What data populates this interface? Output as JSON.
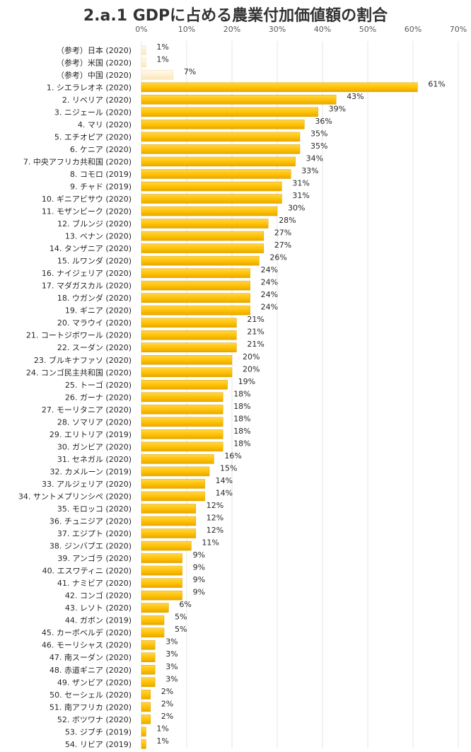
{
  "chart_data": {
    "type": "bar",
    "orientation": "horizontal",
    "title": "2.a.1 GDPに占める農業付加価値額の割合",
    "xlabel": "",
    "ylabel": "",
    "xlim": [
      0,
      70
    ],
    "x_ticks": [
      "0%",
      "10%",
      "20%",
      "30%",
      "40%",
      "50%",
      "60%",
      "70%"
    ],
    "grid": true,
    "value_suffix": "%",
    "colors": {
      "main": "#ffc000",
      "reference": "#fff2cc"
    },
    "categories": [
      "（参考）日本 (2020)",
      "（参考）米国 (2020)",
      "（参考）中国 (2020)",
      "1. シエラレオネ (2020)",
      "2. リベリア (2020)",
      "3. ニジェール (2020)",
      "4. マリ (2020)",
      "5. エチオピア (2020)",
      "6. ケニア (2020)",
      "7. 中央アフリカ共和国 (2020)",
      "8. コモロ (2019)",
      "9. チャド (2019)",
      "10. ギニアビサウ (2020)",
      "11. モザンビーク (2020)",
      "12. ブルンジ (2020)",
      "13. ベナン (2020)",
      "14. タンザニア (2020)",
      "15. ルワンダ (2020)",
      "16. ナイジェリア (2020)",
      "17. マダガスカル (2020)",
      "18. ウガンダ (2020)",
      "19. ギニア (2020)",
      "20. マラウイ (2020)",
      "21. コートジボワール (2020)",
      "22. スーダン (2020)",
      "23. ブルキナファソ (2020)",
      "24. コンゴ民主共和国 (2020)",
      "25. トーゴ (2020)",
      "26. ガーナ (2020)",
      "27. モーリタニア (2020)",
      "28. ソマリア (2020)",
      "29. エリトリア (2019)",
      "30. ガンビア (2020)",
      "31. セネガル (2020)",
      "32. カメルーン (2019)",
      "33. アルジェリア (2020)",
      "34. サントメプリンシペ (2020)",
      "35. モロッコ (2020)",
      "36. チュニジア (2020)",
      "37. エジプト (2020)",
      "38. ジンバブエ (2020)",
      "39. アンゴラ (2020)",
      "40. エスワティニ (2020)",
      "41. ナミビア (2020)",
      "42. コンゴ (2020)",
      "43. レソト (2020)",
      "44. ガボン (2019)",
      "45. カーボベルデ (2020)",
      "46. モーリシャス (2020)",
      "47. 南スーダン (2020)",
      "48. 赤道ギニア (2020)",
      "49. ザンビア (2020)",
      "50. セーシェル (2020)",
      "51. 南アフリカ (2020)",
      "52. ボツワナ (2020)",
      "53. ジブチ (2019)",
      "54. リビア (2019)"
    ],
    "values": [
      1,
      1,
      7,
      61,
      43,
      39,
      36,
      35,
      35,
      34,
      33,
      31,
      31,
      30,
      28,
      27,
      27,
      26,
      24,
      24,
      24,
      24,
      21,
      21,
      21,
      20,
      20,
      19,
      18,
      18,
      18,
      18,
      18,
      16,
      15,
      14,
      14,
      12,
      12,
      12,
      11,
      9,
      9,
      9,
      9,
      6,
      5,
      5,
      3,
      3,
      3,
      3,
      2,
      2,
      2,
      1,
      1
    ],
    "reference_count": 3
  }
}
